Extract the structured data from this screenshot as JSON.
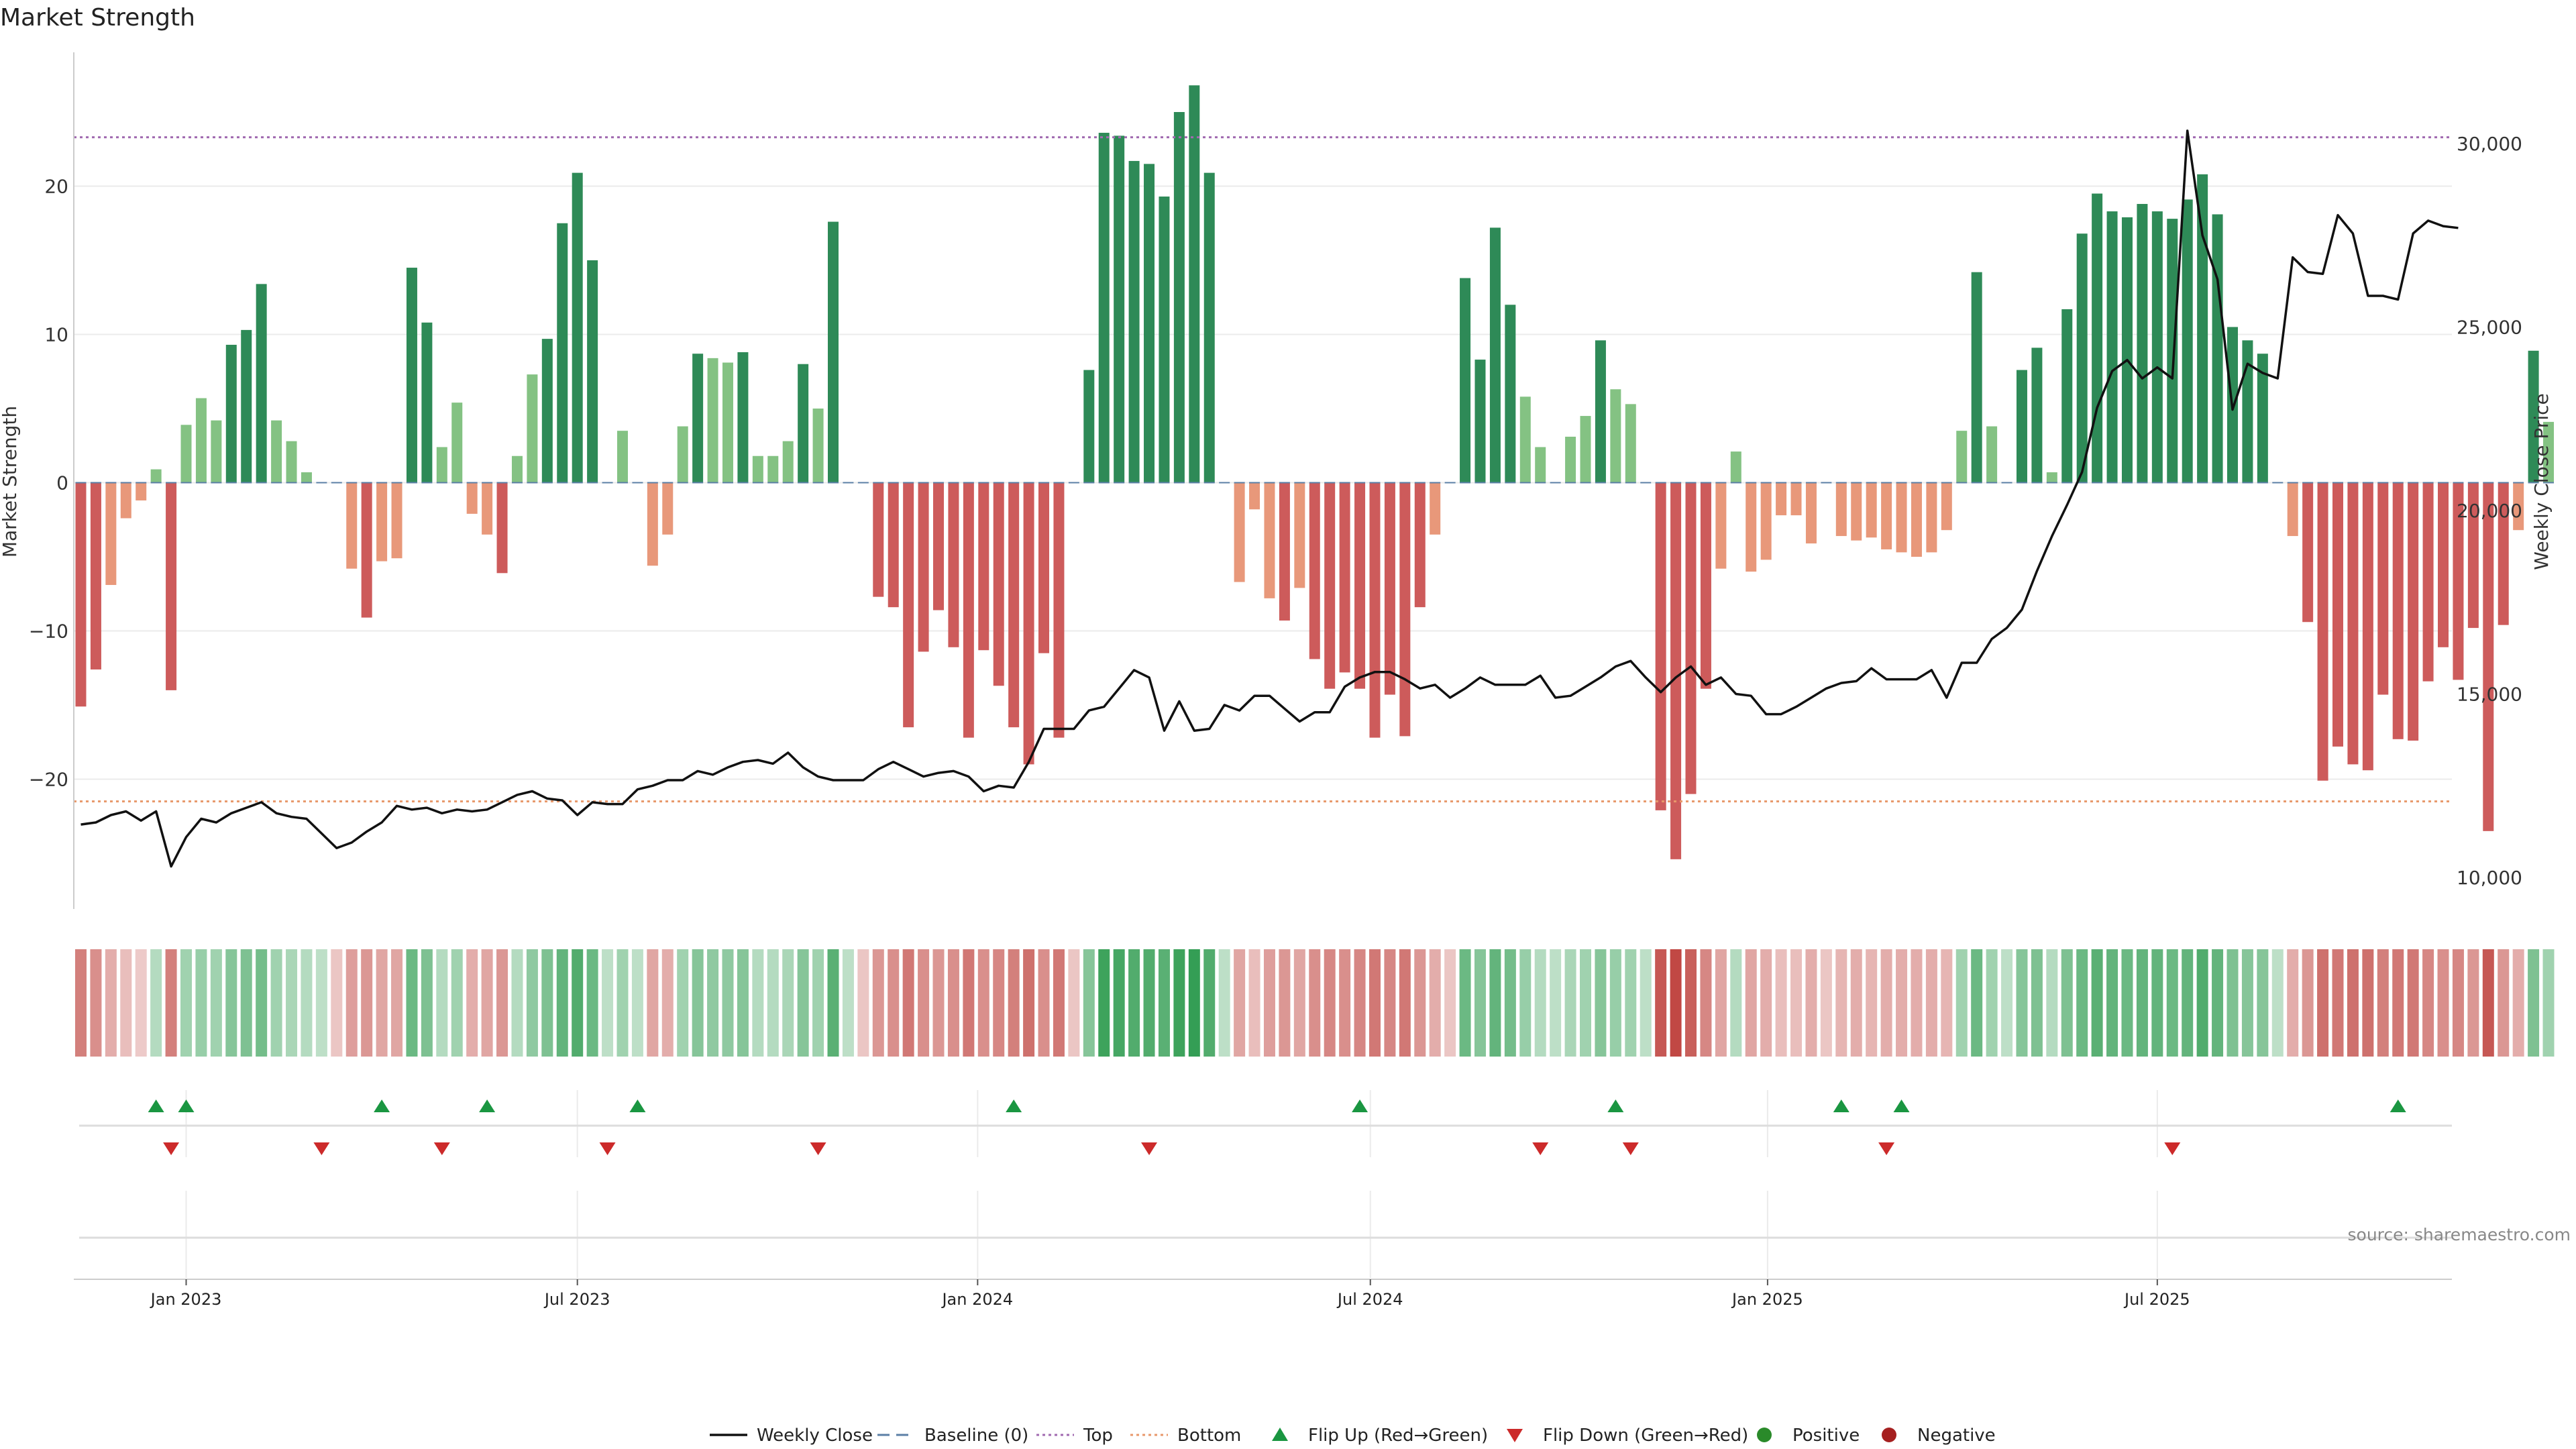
{
  "chart_data": {
    "type": "bar",
    "title": "Market Strength",
    "ylabel_left": "Market Strength",
    "ylabel_right": "Weekly Close Price",
    "source": "source: sharemaestro.com",
    "ylim_left": [
      -29,
      29
    ],
    "yticks_left": [
      -20,
      -10,
      0,
      10,
      20
    ],
    "ytick_labels_left": [
      "−20",
      "−10",
      "0",
      "10",
      "20"
    ],
    "ylim_right": [
      9300,
      32000
    ],
    "yticks_right": [
      10000,
      15000,
      20000,
      25000,
      30000
    ],
    "ytick_labels_right": [
      "10,000",
      "15,000",
      "20,000",
      "25,000",
      "30,000"
    ],
    "top_line": 23.3,
    "bottom_line": -21.5,
    "x_ticks": [
      {
        "index": 7,
        "label": "Jan 2023"
      },
      {
        "index": 33,
        "label": "Jul 2023"
      },
      {
        "index": 59.6,
        "label": "Jan 2024"
      },
      {
        "index": 85.7,
        "label": "Jul 2024"
      },
      {
        "index": 112.1,
        "label": "Jan 2025"
      },
      {
        "index": 138,
        "label": "Jul 2025"
      }
    ],
    "strength": [
      -15.1,
      -12.6,
      -6.9,
      -2.4,
      -1.2,
      0.9,
      -14,
      3.9,
      5.7,
      4.2,
      9.3,
      10.3,
      13.4,
      4.2,
      2.8,
      0.7,
      0,
      0,
      -5.8,
      -9.1,
      -5.3,
      -5.1,
      14.5,
      10.8,
      2.4,
      5.4,
      -2.1,
      -3.5,
      -6.1,
      1.8,
      7.3,
      9.7,
      17.5,
      20.9,
      15,
      0,
      3.5,
      0,
      -5.6,
      -3.5,
      3.8,
      8.7,
      8.4,
      8.1,
      8.8,
      1.8,
      1.8,
      2.8,
      8,
      5,
      17.6,
      0,
      0,
      -7.7,
      -8.4,
      -16.5,
      -11.4,
      -8.6,
      -11.1,
      -17.2,
      -11.3,
      -13.7,
      -16.5,
      -19,
      -11.5,
      -17.2,
      0,
      7.6,
      23.6,
      23.4,
      21.7,
      21.5,
      19.3,
      25,
      26.8,
      20.9,
      0,
      -6.7,
      -1.8,
      -7.8,
      -9.3,
      -7.1,
      -11.9,
      -13.9,
      -12.8,
      -13.9,
      -17.2,
      -14.3,
      -17.1,
      -8.4,
      -3.5,
      0,
      13.8,
      8.3,
      17.2,
      12,
      5.8,
      2.4,
      0,
      3.1,
      4.5,
      9.6,
      6.3,
      5.3,
      0,
      -22.1,
      -25.4,
      -21,
      -13.9,
      -5.8,
      2.1,
      -6,
      -5.2,
      -2.2,
      -2.2,
      -4.1,
      0,
      -3.6,
      -3.9,
      -3.7,
      -4.5,
      -4.7,
      -5,
      -4.7,
      -3.2,
      3.5,
      14.2,
      3.8,
      0,
      7.6,
      9.1,
      0.7,
      11.7,
      16.8,
      19.5,
      18.3,
      17.9,
      18.8,
      18.3,
      17.8,
      19.1,
      20.8,
      18.1,
      10.5,
      9.6,
      8.7,
      0,
      -3.6,
      -9.4,
      -20.1,
      -17.8,
      -19,
      -19.4,
      -14.3,
      -17.3,
      -17.4,
      -13.4,
      -11.1,
      -13.3,
      -9.8,
      -23.5,
      -9.6,
      -3.2,
      8.9,
      4.1
    ],
    "shade": [
      0.6,
      0.5,
      0.3,
      0.2,
      0.1,
      0.2,
      0.6,
      0.3,
      0.35,
      0.3,
      0.45,
      0.5,
      0.55,
      0.3,
      0.25,
      0.2,
      0.15,
      0.15,
      0.4,
      0.45,
      0.35,
      0.35,
      0.6,
      0.5,
      0.2,
      0.3,
      0.3,
      0.35,
      0.45,
      0.2,
      0.4,
      0.5,
      0.65,
      0.75,
      0.6,
      0.15,
      0.3,
      0.15,
      0.35,
      0.3,
      0.3,
      0.45,
      0.4,
      0.4,
      0.45,
      0.2,
      0.2,
      0.25,
      0.45,
      0.3,
      0.7,
      0.15,
      0.15,
      0.45,
      0.5,
      0.65,
      0.5,
      0.45,
      0.5,
      0.65,
      0.5,
      0.55,
      0.6,
      0.7,
      0.5,
      0.65,
      0.15,
      0.45,
      0.85,
      0.8,
      0.75,
      0.75,
      0.7,
      0.85,
      0.9,
      0.75,
      0.15,
      0.35,
      0.2,
      0.4,
      0.45,
      0.35,
      0.5,
      0.55,
      0.5,
      0.55,
      0.65,
      0.55,
      0.65,
      0.45,
      0.3,
      0.15,
      0.6,
      0.45,
      0.65,
      0.55,
      0.35,
      0.2,
      0.15,
      0.25,
      0.3,
      0.45,
      0.35,
      0.3,
      0.15,
      0.85,
      0.95,
      0.8,
      0.55,
      0.35,
      0.2,
      0.35,
      0.3,
      0.2,
      0.2,
      0.3,
      0.15,
      0.25,
      0.3,
      0.25,
      0.3,
      0.3,
      0.3,
      0.3,
      0.25,
      0.3,
      0.6,
      0.3,
      0.15,
      0.45,
      0.5,
      0.2,
      0.5,
      0.6,
      0.7,
      0.65,
      0.6,
      0.65,
      0.65,
      0.6,
      0.65,
      0.75,
      0.65,
      0.5,
      0.45,
      0.45,
      0.15,
      0.3,
      0.45,
      0.7,
      0.65,
      0.7,
      0.7,
      0.6,
      0.65,
      0.65,
      0.55,
      0.5,
      0.55,
      0.45,
      0.85,
      0.45,
      0.3,
      0.5,
      0.3
    ],
    "weekly_close": [
      11442,
      11500,
      11700,
      11800,
      11550,
      11800,
      10300,
      11100,
      11600,
      11500,
      11750,
      11900,
      12050,
      11750,
      11650,
      11600,
      11200,
      10800,
      10950,
      11250,
      11500,
      11950,
      11850,
      11900,
      11750,
      11850,
      11800,
      11850,
      12050,
      12250,
      12350,
      12150,
      12100,
      11700,
      12050,
      12000,
      12000,
      12400,
      12500,
      12650,
      12650,
      12900,
      12800,
      13000,
      13150,
      13200,
      13100,
      13400,
      13000,
      12750,
      12650,
      12650,
      12650,
      12950,
      13150,
      12950,
      12750,
      12850,
      12900,
      12750,
      12350,
      12500,
      12450,
      13150,
      14050,
      14050,
      14050,
      14550,
      14650,
      15150,
      15650,
      15450,
      14000,
      14800,
      14000,
      14050,
      14700,
      14550,
      14950,
      14950,
      14600,
      14250,
      14500,
      14500,
      15200,
      15450,
      15600,
      15600,
      15400,
      15150,
      15250,
      14900,
      15150,
      15450,
      15250,
      15250,
      15250,
      15500,
      14900,
      14950,
      15200,
      15450,
      15750,
      15900,
      15450,
      15050,
      15450,
      15750,
      15250,
      15450,
      15000,
      14950,
      14450,
      14450,
      14650,
      14900,
      15150,
      15300,
      15350,
      15700,
      15400,
      15400,
      15400,
      15650,
      14900,
      15850,
      15850,
      16500,
      16800,
      17300,
      18350,
      19300,
      20150,
      21050,
      22800,
      23800,
      24100,
      23600,
      23900,
      23600,
      30350,
      27500,
      26300,
      22750,
      24000,
      23750,
      23600,
      26900,
      26500,
      26450,
      28050,
      27550,
      25850,
      25850,
      25750,
      27550,
      27900,
      27750,
      27700
    ],
    "flip_up": [
      5,
      7,
      20,
      27,
      37,
      62,
      85,
      102,
      117,
      121,
      154
    ],
    "flip_down": [
      6,
      16,
      24,
      35,
      49,
      71,
      97,
      103,
      120,
      139
    ],
    "legend": [
      {
        "label": "Weekly Close",
        "kind": "line",
        "color": "#111111"
      },
      {
        "label": "Baseline (0)",
        "kind": "dash",
        "color": "#5b7fa6"
      },
      {
        "label": "Top",
        "kind": "dot",
        "color": "#a16ab0"
      },
      {
        "label": "Bottom",
        "kind": "dot",
        "color": "#e8986b"
      },
      {
        "label": "Flip Up (Red→Green)",
        "kind": "tri-up",
        "color": "#1a9641"
      },
      {
        "label": "Flip Down (Green→Red)",
        "kind": "tri-down",
        "color": "#cc2a2a"
      },
      {
        "label": "Positive",
        "kind": "circle",
        "color": "#2a8a2a"
      },
      {
        "label": "Negative",
        "kind": "circle",
        "color": "#a52020"
      }
    ],
    "colors": {
      "pos_strong": "#2e8a57",
      "pos_light": "#84c283",
      "neg_strong": "#cd5b5b",
      "neg_light": "#e8987a",
      "grid": "#ebebeb",
      "axis": "#cccccc"
    }
  }
}
